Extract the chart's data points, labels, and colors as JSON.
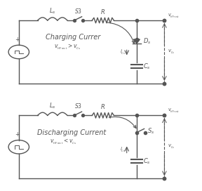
{
  "background": "white",
  "lc": "#555555",
  "lw": 1.0,
  "title1": "Charging Currer",
  "sub1": "$v_{_{HF\\,rect}} > v_{_{Cs}}$",
  "title2": "Discharging Current",
  "sub2": "$v_{_{HF\\,rect}} < v_{_{Cs}}$",
  "lLs": "$L_s$",
  "lS3": "$S3$",
  "lR": "$R$",
  "lDs": "$D_s$",
  "lSs": "$S_s$",
  "lCs": "$C_s$",
  "liCs": "$i_{_{Cs}}$",
  "lvCs": "$v_{_{Cs}}$",
  "lvHF": "$v_{_{HF\\,rect}}$"
}
